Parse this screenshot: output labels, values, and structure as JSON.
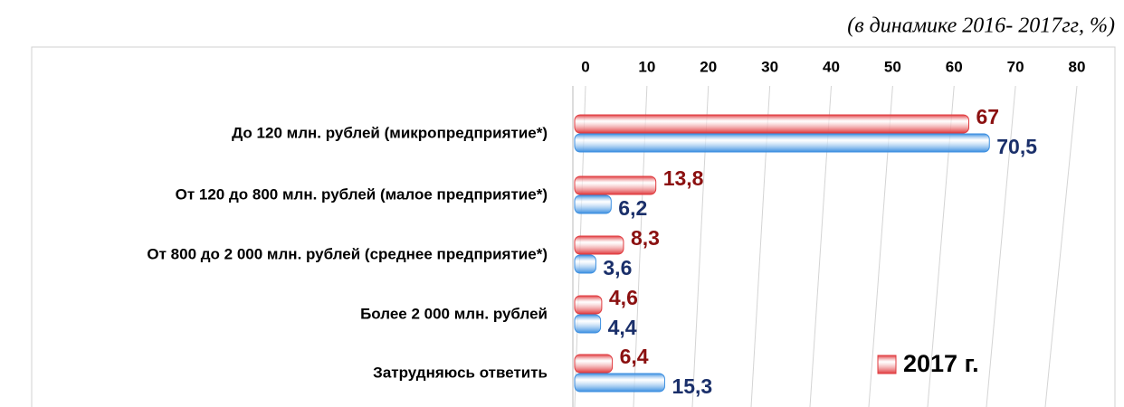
{
  "chart_data": {
    "type": "bar",
    "orientation": "horizontal",
    "subtitle": "(в динамике 2016- 2017гг, %)",
    "categories": [
      "До 120 млн. рублей (микропредприятие*)",
      "От 120 до 800 млн. рублей (малое предприятие*)",
      "От 800 до 2 000 млн. рублей (среднее предприятие*)",
      "Более 2 000 млн. рублей",
      "Затрудняюсь ответить"
    ],
    "series": [
      {
        "name": "2017 г.",
        "color": "#e03a3e",
        "label_color": "#8b1010",
        "values": [
          67,
          13.8,
          8.3,
          4.6,
          6.4
        ],
        "value_labels": [
          "67",
          "13,8",
          "8,3",
          "4,6",
          "6,4"
        ]
      },
      {
        "color": "#3a8ee0",
        "label_color": "#1a2f6a",
        "values": [
          70.5,
          6.2,
          3.6,
          4.4,
          15.3
        ],
        "value_labels": [
          "70,5",
          "6,2",
          "3,6",
          "4,4",
          "15,3"
        ]
      }
    ],
    "xlim": [
      0,
      80
    ],
    "xticks": [
      0,
      10,
      20,
      30,
      40,
      50,
      60,
      70,
      80
    ],
    "grid": true,
    "legend": "lower right"
  }
}
